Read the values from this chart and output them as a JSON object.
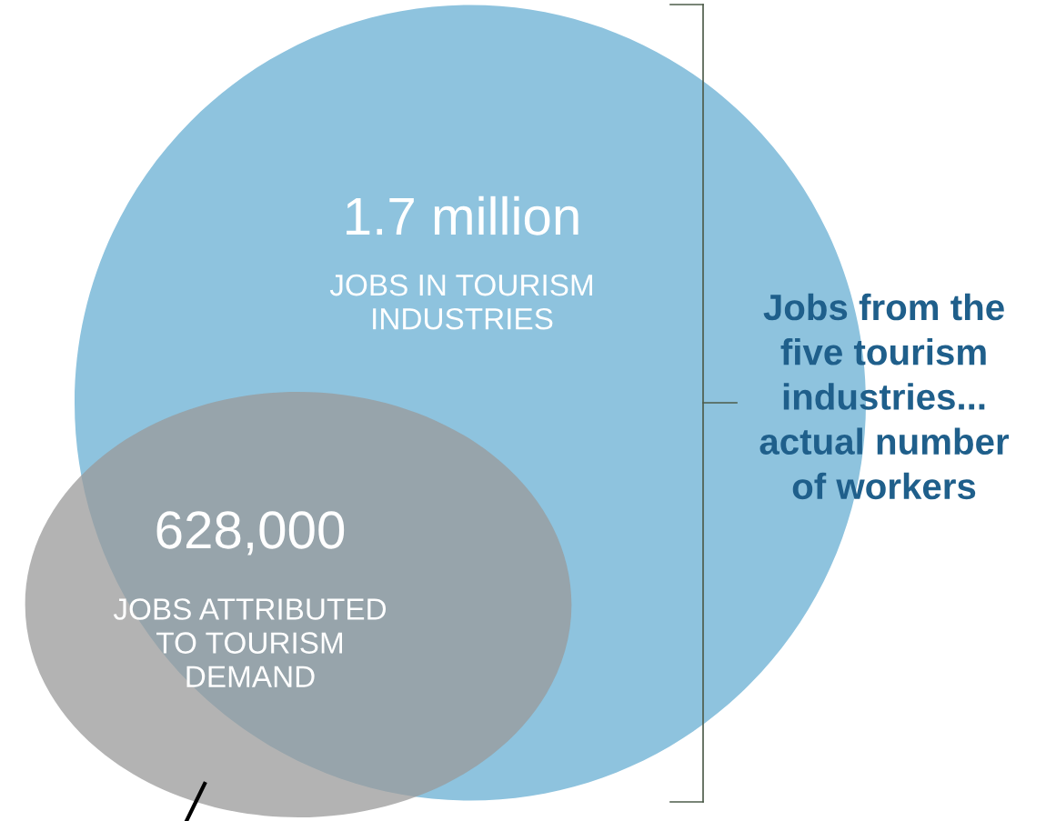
{
  "chart_data": {
    "type": "other",
    "categories": [
      "JOBS IN TOURISM\nINDUSTRIES",
      "JOBS ATTRIBUTED\nTO TOURISM\nDEMAND"
    ],
    "values": [
      1700000,
      628000
    ],
    "value_labels": [
      "1.7 million",
      "628,000"
    ],
    "colors": [
      "#8ec3de",
      "#9a9a9a"
    ],
    "annotations": [
      "Jobs from the\nfive tourism\nindustries...\nactual number\nof workers"
    ]
  }
}
